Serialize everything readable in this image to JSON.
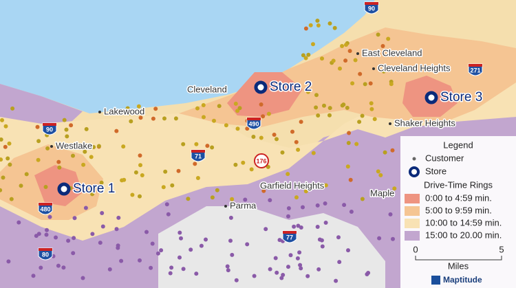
{
  "places": [
    "Cleveland",
    "Lakewood",
    "Westlake",
    "East Cleveland",
    "Cleveland Heights",
    "Shaker Heights",
    "Garfield Heights",
    "Parma",
    "Maple"
  ],
  "stores": [
    "Store 1",
    "Store 2",
    "Store 3"
  ],
  "highways": [
    "90",
    "90",
    "271",
    "490",
    "71",
    "176",
    "480",
    "80",
    "77"
  ],
  "legend": {
    "title": "Legend",
    "items": [
      "Customer",
      "Store"
    ],
    "rings_title": "Drive-Time Rings",
    "rings": [
      "0:00 to 4:59 min.",
      "5:00 to 9:59 min.",
      "10:00 to 14:59 min.",
      "15:00 to 20.00 min."
    ]
  },
  "scale": {
    "start": 0,
    "end": 5,
    "unit": "Miles"
  },
  "brand": "Maptitude"
}
